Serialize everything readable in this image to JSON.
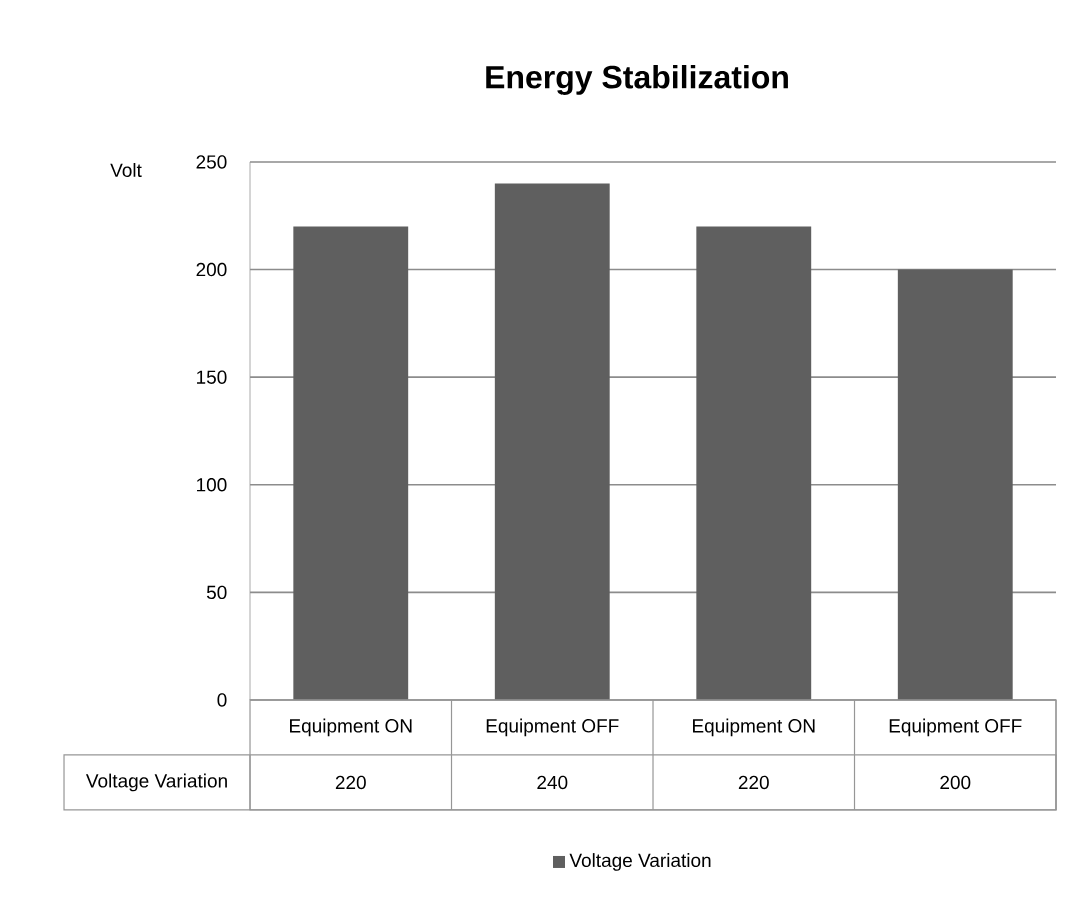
{
  "chart_data": {
    "type": "bar",
    "title": "Energy Stabilization",
    "ylabel": "Volt",
    "categories": [
      "Equipment ON",
      "Equipment OFF",
      "Equipment ON",
      "Equipment OFF"
    ],
    "series": [
      {
        "name": "Voltage Variation",
        "color": "#5f5f5f",
        "values": [
          220,
          240,
          220,
          200
        ]
      }
    ],
    "ylim": [
      0,
      250
    ],
    "yticks": [
      0,
      50,
      100,
      150,
      200,
      250
    ],
    "grid": "y",
    "legend": "bottom",
    "data_labels": true
  }
}
